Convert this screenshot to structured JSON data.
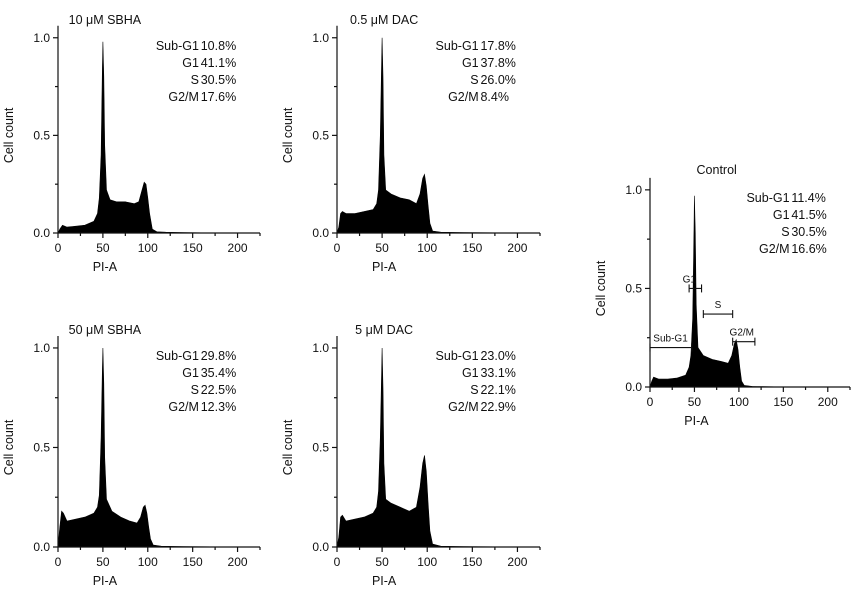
{
  "chart_data": [
    {
      "type": "area",
      "title": "10 μM SBHA",
      "xlabel": "PI-A",
      "ylabel": "Cell count",
      "xlim": [
        0,
        225
      ],
      "ylim": [
        0,
        1.05
      ],
      "x_ticks": [
        "0",
        "50",
        "100",
        "150",
        "200"
      ],
      "y_ticks": [
        "0.0",
        "0.5",
        "1.0"
      ],
      "stats": [
        {
          "phase": "Sub-G1",
          "value": "10.8%"
        },
        {
          "phase": "G1",
          "value": "41.1%"
        },
        {
          "phase": "S",
          "value": "30.5%"
        },
        {
          "phase": "G2/M",
          "value": "17.6%"
        }
      ],
      "series": [
        {
          "values": [
            [
              0,
              0
            ],
            [
              2,
              0.02
            ],
            [
              5,
              0.04
            ],
            [
              10,
              0.03
            ],
            [
              20,
              0.035
            ],
            [
              30,
              0.04
            ],
            [
              40,
              0.06
            ],
            [
              44,
              0.1
            ],
            [
              46,
              0.18
            ],
            [
              48,
              0.4
            ],
            [
              49.5,
              0.85
            ],
            [
              50,
              0.98
            ],
            [
              51,
              0.8
            ],
            [
              52,
              0.45
            ],
            [
              54,
              0.22
            ],
            [
              58,
              0.17
            ],
            [
              65,
              0.16
            ],
            [
              75,
              0.16
            ],
            [
              85,
              0.15
            ],
            [
              90,
              0.16
            ],
            [
              93,
              0.21
            ],
            [
              96,
              0.26
            ],
            [
              98,
              0.25
            ],
            [
              100,
              0.18
            ],
            [
              102,
              0.1
            ],
            [
              105,
              0.02
            ],
            [
              110,
              0.006
            ],
            [
              120,
              0.004
            ],
            [
              140,
              0.002
            ],
            [
              160,
              0.001
            ],
            [
              200,
              0
            ]
          ]
        }
      ]
    },
    {
      "type": "area",
      "title": "0.5 μM DAC",
      "xlabel": "PI-A",
      "ylabel": "Cell count",
      "xlim": [
        0,
        225
      ],
      "ylim": [
        0,
        1.05
      ],
      "x_ticks": [
        "0",
        "50",
        "100",
        "150",
        "200"
      ],
      "y_ticks": [
        "0.0",
        "0.5",
        "1.0"
      ],
      "stats": [
        {
          "phase": "Sub-G1",
          "value": "17.8%"
        },
        {
          "phase": "G1",
          "value": "37.8%"
        },
        {
          "phase": "S",
          "value": "26.0%"
        },
        {
          "phase": "G2/M",
          "value": "8.4%"
        }
      ],
      "series": [
        {
          "values": [
            [
              0,
              0
            ],
            [
              2,
              0.03
            ],
            [
              4,
              0.1
            ],
            [
              6,
              0.11
            ],
            [
              10,
              0.1
            ],
            [
              20,
              0.1
            ],
            [
              30,
              0.11
            ],
            [
              40,
              0.12
            ],
            [
              44,
              0.15
            ],
            [
              46,
              0.22
            ],
            [
              48,
              0.5
            ],
            [
              49.5,
              0.9
            ],
            [
              50,
              1.0
            ],
            [
              51,
              0.8
            ],
            [
              52,
              0.4
            ],
            [
              54,
              0.22
            ],
            [
              60,
              0.2
            ],
            [
              70,
              0.18
            ],
            [
              80,
              0.17
            ],
            [
              88,
              0.15
            ],
            [
              92,
              0.2
            ],
            [
              95,
              0.28
            ],
            [
              97,
              0.3
            ],
            [
              99,
              0.24
            ],
            [
              101,
              0.14
            ],
            [
              103,
              0.05
            ],
            [
              106,
              0.01
            ],
            [
              115,
              0.004
            ],
            [
              140,
              0.002
            ],
            [
              200,
              0
            ]
          ]
        }
      ]
    },
    {
      "type": "area",
      "title": "50 μM SBHA",
      "xlabel": "PI-A",
      "ylabel": "Cell count",
      "xlim": [
        0,
        225
      ],
      "ylim": [
        0,
        1.05
      ],
      "x_ticks": [
        "0",
        "50",
        "100",
        "150",
        "200"
      ],
      "y_ticks": [
        "0.0",
        "0.5",
        "1.0"
      ],
      "stats": [
        {
          "phase": "Sub-G1",
          "value": "29.8%"
        },
        {
          "phase": "G1",
          "value": "35.4%"
        },
        {
          "phase": "S",
          "value": "22.5%"
        },
        {
          "phase": "G2/M",
          "value": "12.3%"
        }
      ],
      "series": [
        {
          "values": [
            [
              0,
              0
            ],
            [
              2,
              0.1
            ],
            [
              4,
              0.18
            ],
            [
              6,
              0.17
            ],
            [
              10,
              0.13
            ],
            [
              20,
              0.14
            ],
            [
              30,
              0.15
            ],
            [
              40,
              0.17
            ],
            [
              44,
              0.2
            ],
            [
              46,
              0.26
            ],
            [
              48,
              0.55
            ],
            [
              49.5,
              0.9
            ],
            [
              50,
              1.0
            ],
            [
              51,
              0.82
            ],
            [
              52,
              0.45
            ],
            [
              54,
              0.24
            ],
            [
              60,
              0.18
            ],
            [
              70,
              0.15
            ],
            [
              80,
              0.13
            ],
            [
              88,
              0.12
            ],
            [
              92,
              0.15
            ],
            [
              95,
              0.2
            ],
            [
              97,
              0.21
            ],
            [
              99,
              0.17
            ],
            [
              101,
              0.1
            ],
            [
              103,
              0.04
            ],
            [
              106,
              0.01
            ],
            [
              115,
              0.004
            ],
            [
              140,
              0.002
            ],
            [
              200,
              0
            ]
          ]
        }
      ]
    },
    {
      "type": "area",
      "title": "5 μM DAC",
      "xlabel": "PI-A",
      "ylabel": "Cell count",
      "xlim": [
        0,
        225
      ],
      "ylim": [
        0,
        1.05
      ],
      "x_ticks": [
        "0",
        "50",
        "100",
        "150",
        "200"
      ],
      "y_ticks": [
        "0.0",
        "0.5",
        "1.0"
      ],
      "stats": [
        {
          "phase": "Sub-G1",
          "value": "23.0%"
        },
        {
          "phase": "G1",
          "value": "33.1%"
        },
        {
          "phase": "S",
          "value": "22.1%"
        },
        {
          "phase": "G2/M",
          "value": "22.9%"
        }
      ],
      "series": [
        {
          "values": [
            [
              0,
              0
            ],
            [
              2,
              0.05
            ],
            [
              4,
              0.15
            ],
            [
              6,
              0.16
            ],
            [
              10,
              0.13
            ],
            [
              20,
              0.14
            ],
            [
              30,
              0.15
            ],
            [
              40,
              0.17
            ],
            [
              44,
              0.2
            ],
            [
              46,
              0.28
            ],
            [
              48,
              0.55
            ],
            [
              49.5,
              0.9
            ],
            [
              50,
              1.0
            ],
            [
              51,
              0.8
            ],
            [
              52,
              0.42
            ],
            [
              54,
              0.24
            ],
            [
              60,
              0.22
            ],
            [
              70,
              0.2
            ],
            [
              80,
              0.18
            ],
            [
              88,
              0.2
            ],
            [
              92,
              0.3
            ],
            [
              95,
              0.42
            ],
            [
              97,
              0.46
            ],
            [
              99,
              0.38
            ],
            [
              101,
              0.22
            ],
            [
              103,
              0.08
            ],
            [
              106,
              0.015
            ],
            [
              115,
              0.004
            ],
            [
              140,
              0.002
            ],
            [
              200,
              0
            ]
          ]
        }
      ]
    },
    {
      "type": "area",
      "title": "Control",
      "xlabel": "PI-A",
      "ylabel": "Cell count",
      "xlim": [
        0,
        225
      ],
      "ylim": [
        0,
        1.05
      ],
      "x_ticks": [
        "0",
        "50",
        "100",
        "150",
        "200"
      ],
      "y_ticks": [
        "0.0",
        "0.5",
        "1.0"
      ],
      "stats": [
        {
          "phase": "Sub-G1",
          "value": "11.4%"
        },
        {
          "phase": "G1",
          "value": "41.5%"
        },
        {
          "phase": "S",
          "value": "30.5%"
        },
        {
          "phase": "G2/M",
          "value": "16.6%"
        }
      ],
      "gates": [
        {
          "label": "Sub-G1",
          "x": [
            0,
            47
          ],
          "y": 0.2
        },
        {
          "label": "G1",
          "x": [
            44,
            58
          ],
          "y": 0.5
        },
        {
          "label": "S",
          "x": [
            60,
            93
          ],
          "y": 0.37
        },
        {
          "label": "G2/M",
          "x": [
            93,
            118
          ],
          "y": 0.23
        }
      ],
      "series": [
        {
          "values": [
            [
              0,
              0
            ],
            [
              2,
              0.03
            ],
            [
              4,
              0.05
            ],
            [
              10,
              0.04
            ],
            [
              20,
              0.04
            ],
            [
              30,
              0.045
            ],
            [
              40,
              0.06
            ],
            [
              44,
              0.1
            ],
            [
              46,
              0.16
            ],
            [
              48,
              0.35
            ],
            [
              49.5,
              0.8
            ],
            [
              50,
              0.97
            ],
            [
              51,
              0.78
            ],
            [
              52,
              0.42
            ],
            [
              54,
              0.2
            ],
            [
              60,
              0.16
            ],
            [
              70,
              0.14
            ],
            [
              80,
              0.13
            ],
            [
              88,
              0.12
            ],
            [
              92,
              0.16
            ],
            [
              95,
              0.22
            ],
            [
              97,
              0.24
            ],
            [
              99,
              0.19
            ],
            [
              101,
              0.1
            ],
            [
              103,
              0.03
            ],
            [
              106,
              0.008
            ],
            [
              115,
              0.003
            ],
            [
              140,
              0.001
            ],
            [
              200,
              0
            ]
          ]
        }
      ]
    }
  ]
}
